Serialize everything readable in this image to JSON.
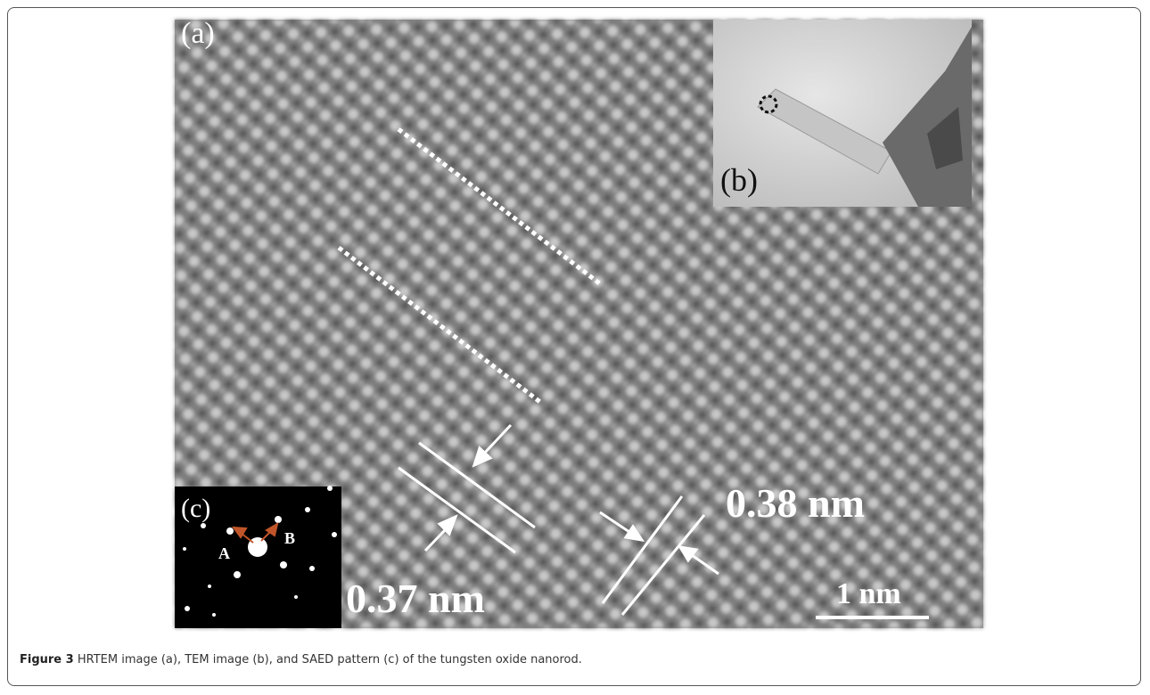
{
  "figure": {
    "panel_labels": {
      "a": "(a)",
      "b": "(b)",
      "c": "(c)"
    },
    "measurements": [
      "0.37 nm",
      "0.38 nm"
    ],
    "scale_bar": "1 nm",
    "spot_labels": [
      "A",
      "B"
    ]
  },
  "caption": {
    "label": "Figure 3",
    "text": "HRTEM image (a), TEM image (b), and SAED pattern (c) of the tungsten oxide nanorod."
  }
}
